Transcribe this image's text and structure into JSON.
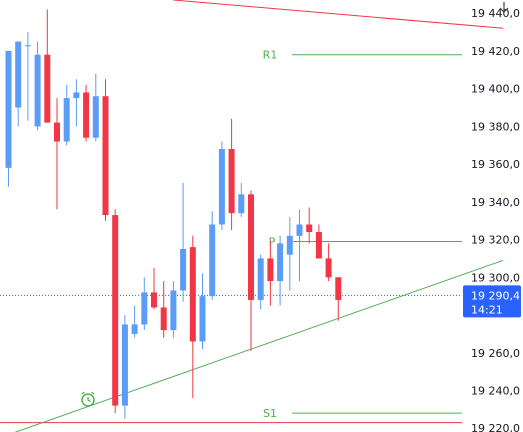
{
  "chart_data": {
    "type": "candlestick",
    "ylim": [
      19218,
      19447
    ],
    "y_ticks": [
      "19 440,0",
      "19 420,0",
      "19 400,0",
      "19 380,0",
      "19 360,0",
      "19 340,0",
      "19 320,0",
      "19 300,0",
      "19 260,0",
      "19 240,0",
      "19 220,0"
    ],
    "y_tick_values": [
      19440,
      19420,
      19400,
      19380,
      19360,
      19340,
      19320,
      19300,
      19260,
      19240,
      19220
    ],
    "candles": [
      {
        "o": 19358,
        "h": 19420,
        "l": 19348,
        "c": 19420
      },
      {
        "o": 19390,
        "h": 19425,
        "l": 19380,
        "c": 19425
      },
      {
        "o": 19423,
        "h": 19430,
        "l": 19383,
        "c": 19423
      },
      {
        "o": 19380,
        "h": 19425,
        "l": 19378,
        "c": 19418
      },
      {
        "o": 19418,
        "h": 19442,
        "l": 19382,
        "c": 19382
      },
      {
        "o": 19382,
        "h": 19395,
        "l": 19336,
        "c": 19372
      },
      {
        "o": 19372,
        "h": 19402,
        "l": 19370,
        "c": 19395
      },
      {
        "o": 19395,
        "h": 19405,
        "l": 19380,
        "c": 19398
      },
      {
        "o": 19398,
        "h": 19402,
        "l": 19372,
        "c": 19374
      },
      {
        "o": 19374,
        "h": 19408,
        "l": 19372,
        "c": 19396
      },
      {
        "o": 19396,
        "h": 19405,
        "l": 19330,
        "c": 19333
      },
      {
        "o": 19333,
        "h": 19336,
        "l": 19228,
        "c": 19232
      },
      {
        "o": 19232,
        "h": 19280,
        "l": 19225,
        "c": 19275
      },
      {
        "o": 19270,
        "h": 19285,
        "l": 19268,
        "c": 19275
      },
      {
        "o": 19275,
        "h": 19300,
        "l": 19272,
        "c": 19292
      },
      {
        "o": 19292,
        "h": 19305,
        "l": 19283,
        "c": 19284
      },
      {
        "o": 19284,
        "h": 19298,
        "l": 19268,
        "c": 19272
      },
      {
        "o": 19272,
        "h": 19298,
        "l": 19268,
        "c": 19293
      },
      {
        "o": 19293,
        "h": 19350,
        "l": 19287,
        "c": 19315
      },
      {
        "o": 19316,
        "h": 19322,
        "l": 19236,
        "c": 19266
      },
      {
        "o": 19266,
        "h": 19302,
        "l": 19262,
        "c": 19290
      },
      {
        "o": 19290,
        "h": 19335,
        "l": 19288,
        "c": 19328
      },
      {
        "o": 19328,
        "h": 19372,
        "l": 19325,
        "c": 19368
      },
      {
        "o": 19368,
        "h": 19384,
        "l": 19325,
        "c": 19334
      },
      {
        "o": 19334,
        "h": 19350,
        "l": 19332,
        "c": 19344
      },
      {
        "o": 19344,
        "h": 19346,
        "l": 19261,
        "c": 19288
      },
      {
        "o": 19288,
        "h": 19312,
        "l": 19283,
        "c": 19310
      },
      {
        "o": 19310,
        "h": 19319,
        "l": 19285,
        "c": 19298
      },
      {
        "o": 19298,
        "h": 19322,
        "l": 19285,
        "c": 19318
      },
      {
        "o": 19312,
        "h": 19332,
        "l": 19293,
        "c": 19322
      },
      {
        "o": 19322,
        "h": 19336,
        "l": 19298,
        "c": 19328
      },
      {
        "o": 19328,
        "h": 19337,
        "l": 19318,
        "c": 19324
      },
      {
        "o": 19324,
        "h": 19328,
        "l": 19310,
        "c": 19310
      },
      {
        "o": 19310,
        "h": 19318,
        "l": 19298,
        "c": 19300
      },
      {
        "o": 19300,
        "h": 19300,
        "l": 19277,
        "c": 19288
      }
    ],
    "levels": [
      {
        "label": "R1",
        "value": 19418
      },
      {
        "label": "P",
        "value": 19319
      },
      {
        "label": "S1",
        "value": 19228
      }
    ],
    "trend_lines": [
      {
        "name": "support",
        "from": {
          "candle": -2,
          "price": 19213
        },
        "to": {
          "candle": 51,
          "price": 19309
        }
      },
      {
        "name": "resistance",
        "from": {
          "candle": 17,
          "price": 19447
        },
        "to": {
          "candle": 51,
          "price": 19432
        }
      }
    ],
    "horizontal_line": {
      "value": 19223
    },
    "last_price": {
      "value": 19290.4,
      "label": "19 290,4",
      "time_label": "14:21"
    }
  },
  "colors": {
    "up": "#5b9cf6",
    "down": "#f23645",
    "levels": "#4caf50",
    "trend_support": "#4caf50",
    "trend_resistance": "#f23645",
    "price_tag": "#2962ff",
    "axis_text": "#131722"
  },
  "icons": {
    "alert": "alarm-clock-icon",
    "axis_top": "chevron-down-icon"
  }
}
